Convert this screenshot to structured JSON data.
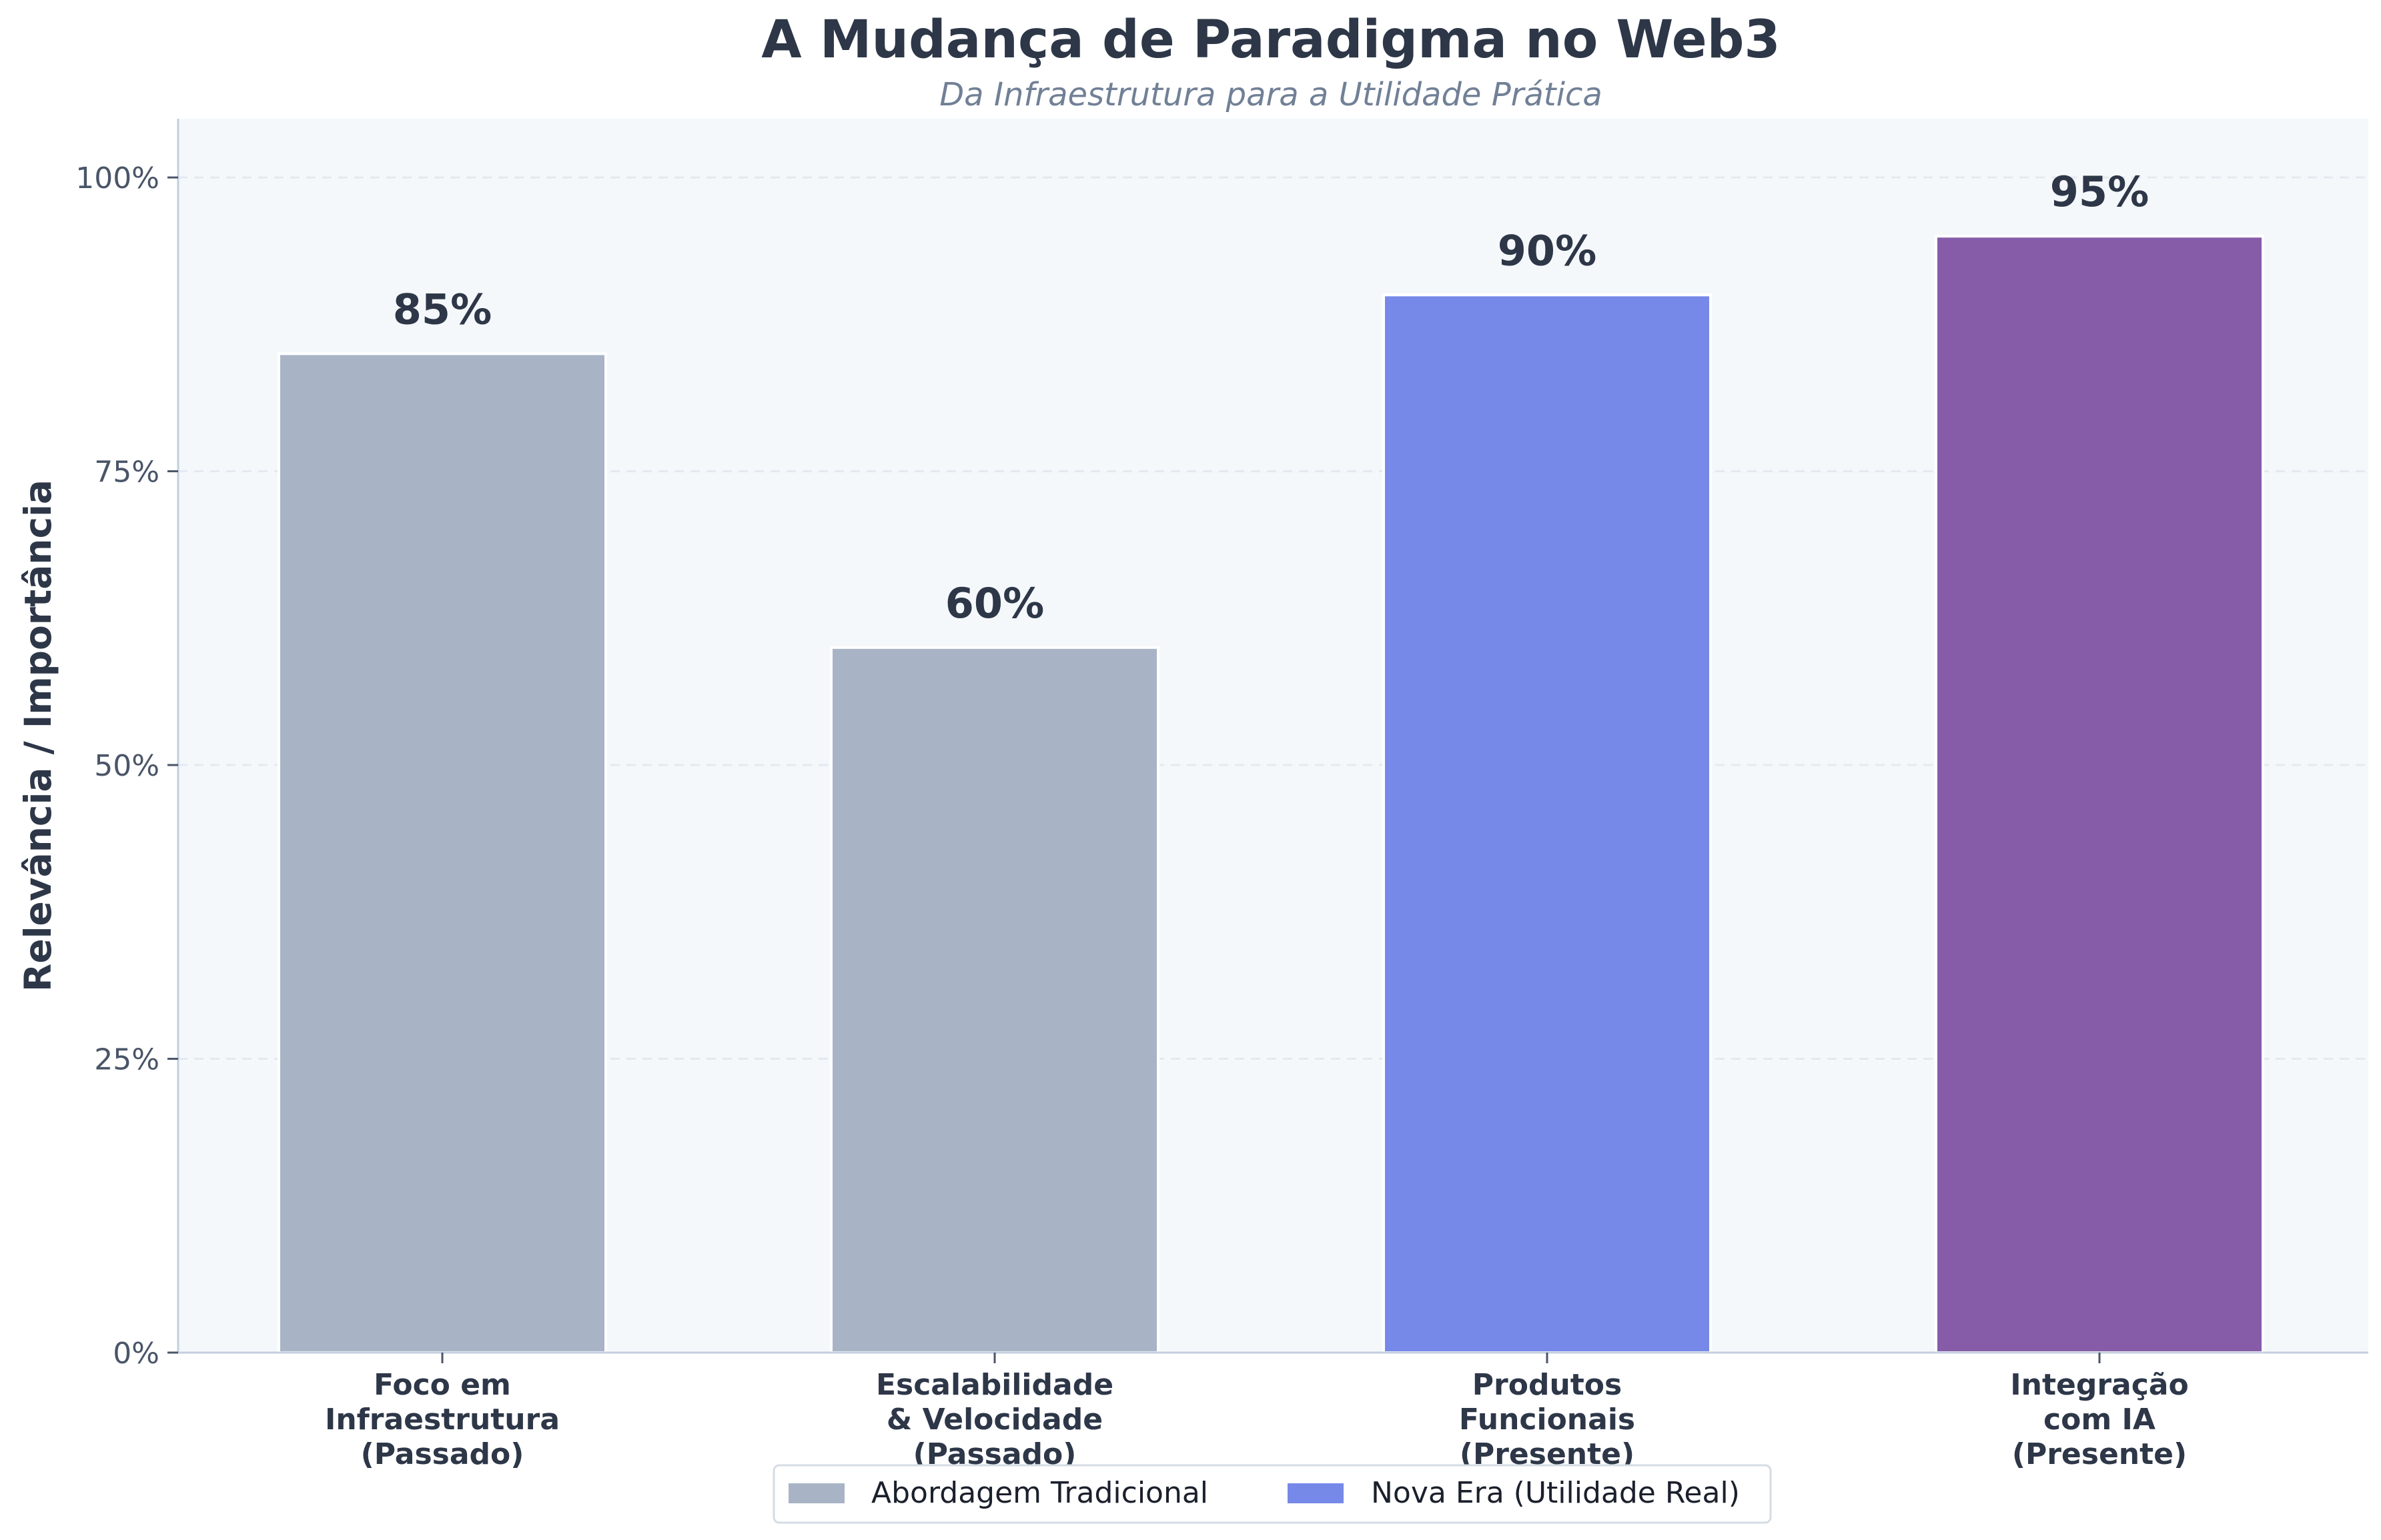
{
  "chart_data": {
    "type": "bar",
    "title": "A Mudança de Paradigma no Web3",
    "subtitle": "Da Infraestrutura para a Utilidade Prática",
    "xlabel": "",
    "ylabel": "Relevância / Importância",
    "ylim": [
      0,
      105
    ],
    "yticks": [
      0,
      25,
      50,
      75,
      100
    ],
    "ytick_labels": [
      "0%",
      "25%",
      "50%",
      "75%",
      "100%"
    ],
    "categories": [
      [
        "Foco em",
        "Infraestrutura",
        "(Passado)"
      ],
      [
        "Escalabilidade",
        "& Velocidade",
        "(Passado)"
      ],
      [
        "Produtos",
        "Funcionais",
        "(Presente)"
      ],
      [
        "Integração",
        "com IA",
        "(Presente)"
      ]
    ],
    "values": [
      85,
      60,
      90,
      95
    ],
    "value_labels": [
      "85%",
      "60%",
      "90%",
      "95%"
    ],
    "bar_colors": [
      "#a8b4c6",
      "#a8b4c6",
      "#7689e9",
      "#865ca9"
    ],
    "grid": "y-dashed",
    "legend": {
      "placement": "bottom-center",
      "entries": [
        {
          "label": "Abordagem Tradicional",
          "color": "#a8b4c6"
        },
        {
          "label": "Nova Era (Utilidade Real)",
          "color": "#7689e9"
        }
      ]
    },
    "colors": {
      "plot_bg": "#f5f8fb",
      "axis": "#c3cfdf",
      "text": "#2d3748"
    }
  }
}
